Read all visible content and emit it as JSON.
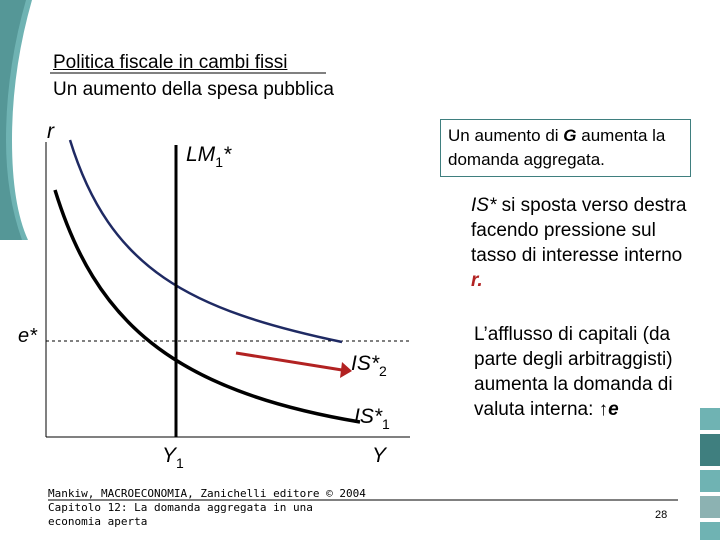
{
  "title": {
    "line1": "Politica fiscale in cambi fissi",
    "line2": "Un aumento della spesa pubblica"
  },
  "diagram": {
    "y_axis_label": "r",
    "rate_label": "e*",
    "lm_label": {
      "main": "LM",
      "sub": "1",
      "suffix": "*"
    },
    "is2_label": {
      "main": "IS*",
      "sub": "2"
    },
    "is1_label": {
      "main": "IS*",
      "sub": "1"
    },
    "y1_label": {
      "main": "Y",
      "sub": "1"
    },
    "x_axis_label": "Y"
  },
  "callout": {
    "pre": "Un aumento di ",
    "g": "G",
    "post": " aumenta la domanda aggregata."
  },
  "shift_note": {
    "is": "IS*",
    "text": " si sposta verso destra facendo pressione sul tasso di interesse interno ",
    "r": "r."
  },
  "capital_note": {
    "text": "L’afflusso di capitali (da parte degli arbitraggisti) aumenta la domanda di valuta interna: ",
    "arrow": "↑",
    "e": "e"
  },
  "footer": {
    "line1": "Mankiw, MACROECONOMIA, Zanichelli editore © 2004",
    "line2": "Capitolo 12: La domanda aggregata in una",
    "line3": "economia aperta"
  },
  "page_number": "28",
  "colors": {
    "teal": "#6fb3b3",
    "dark_teal": "#3f7f7f",
    "curve_new": "#1f2a63",
    "red": "#b22222"
  }
}
